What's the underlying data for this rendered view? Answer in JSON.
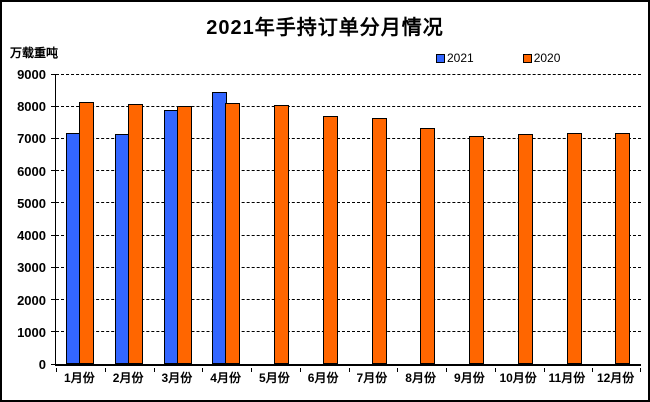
{
  "window": {
    "background_color": "#FFFFFF",
    "border_color": "#000000"
  },
  "chart_data": {
    "type": "bar",
    "title": "2021年手持订单分月情况",
    "unit_label": "万载重吨",
    "categories": [
      "1月份",
      "2月份",
      "3月份",
      "4月份",
      "5月份",
      "6月份",
      "7月份",
      "8月份",
      "9月份",
      "10月份",
      "11月份",
      "12月份"
    ],
    "series": [
      {
        "name": "2021",
        "color": "#3366FF",
        "values": [
          7110,
          7086,
          7834,
          8389,
          null,
          null,
          null,
          null,
          null,
          null,
          null,
          null
        ]
      },
      {
        "name": "2020",
        "color": "#FF6600",
        "values": [
          8066,
          8010,
          7950,
          8030,
          7990,
          7650,
          7570,
          7260,
          7000,
          7090,
          7100,
          7111
        ]
      }
    ],
    "ylim": [
      0,
      9000
    ],
    "ytick_step": 1000,
    "ytick_labels": [
      "0",
      "1000",
      "2000",
      "3000",
      "4000",
      "5000",
      "6000",
      "7000",
      "8000",
      "9000"
    ],
    "grid": "horizontal-dashed",
    "legend_position": "top-right",
    "gridline_color": "#000000",
    "bar_border_color": "#000000"
  }
}
